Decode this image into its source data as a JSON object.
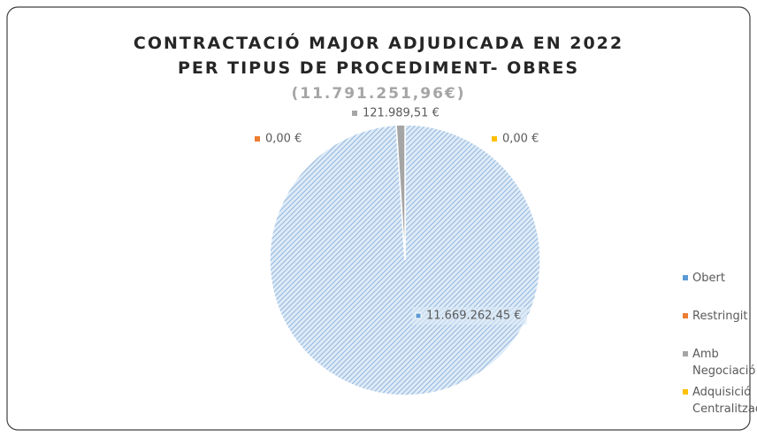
{
  "chart_data": {
    "type": "pie",
    "title": [
      "CONTRACTACIÓ MAJOR ADJUDICADA EN 2022",
      "PER TIPUS DE PROCEDIMENT- OBRES"
    ],
    "subtitle": "(11.791.251,96€)",
    "categories": [
      "Obert",
      "Restringit",
      "Amb Negociació",
      "Adquisició Centralitzada"
    ],
    "values": [
      11669262.45,
      0,
      121989.51,
      0
    ],
    "value_labels": [
      "11.669.262,45 €",
      "0,00 €",
      "121.989,51 €",
      "0,00 €"
    ],
    "colors": [
      "#5b9bd5",
      "#ed7d31",
      "#a5a5a5",
      "#ffc000"
    ],
    "legend": "right"
  }
}
